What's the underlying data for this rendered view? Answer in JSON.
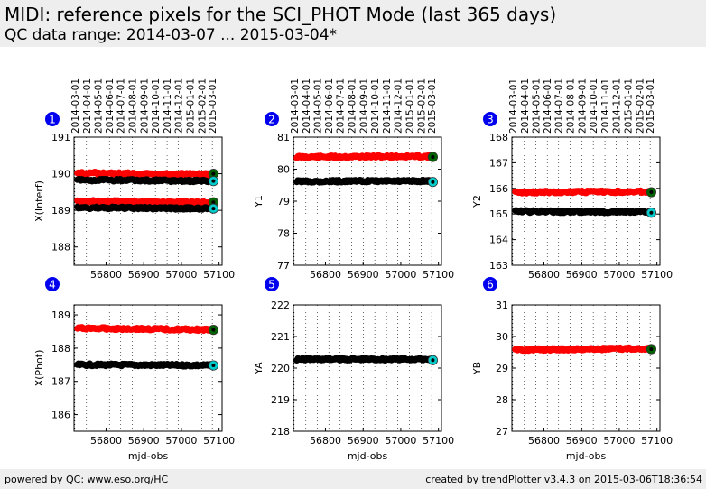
{
  "header": {
    "title": "MIDI: reference pixels for the SCI_PHOT Mode (last 365 days)",
    "subtitle": "QC data range: 2014-03-07 ... 2015-03-04*"
  },
  "footer": {
    "left": "powered by QC: www.eso.org/HC",
    "right": "created by trendPlotter v3.4.3 on 2015-03-06T18:36:54"
  },
  "colors": {
    "series_red": "#ff0000",
    "series_black": "#000000",
    "last_point_green": "#006400",
    "last_point_cyan": "#00cccc",
    "badge": "#0000ee"
  },
  "chart_data": [
    {
      "type": "scatter",
      "panel": "1",
      "ylabel": "X(Interf)",
      "xlabel": "",
      "xlim": [
        56715,
        57108
      ],
      "ylim": [
        187.5,
        191
      ],
      "yticks": [
        188,
        189,
        190,
        191
      ],
      "xticks": [
        56800,
        56900,
        57000,
        57100
      ],
      "top_dates": [
        "2014-03-01",
        "2014-04-01",
        "2014-05-01",
        "2014-06-01",
        "2014-07-01",
        "2014-08-01",
        "2014-09-01",
        "2014-10-01",
        "2014-11-01",
        "2014-12-01",
        "2015-01-01",
        "2015-02-01",
        "2015-03-01"
      ],
      "top_mjd": [
        56717,
        56748,
        56778,
        56809,
        56839,
        56870,
        56901,
        56931,
        56962,
        56992,
        57023,
        57054,
        57082
      ],
      "series": [
        {
          "color": "red",
          "x": [
            56724,
            57080
          ],
          "y": [
            190.02,
            189.98
          ],
          "last": {
            "x": 57085,
            "y": 190.0,
            "color": "green"
          }
        },
        {
          "color": "black",
          "x": [
            56724,
            57080
          ],
          "y": [
            189.83,
            189.8
          ],
          "last": {
            "x": 57085,
            "y": 189.8,
            "color": "cyan"
          }
        },
        {
          "color": "red",
          "x": [
            56724,
            57080
          ],
          "y": [
            189.25,
            189.22
          ],
          "last": {
            "x": 57085,
            "y": 189.22,
            "color": "green"
          }
        },
        {
          "color": "black",
          "x": [
            56724,
            57080
          ],
          "y": [
            189.07,
            189.05
          ],
          "last": {
            "x": 57085,
            "y": 189.05,
            "color": "cyan"
          }
        }
      ]
    },
    {
      "type": "scatter",
      "panel": "2",
      "ylabel": "Y1",
      "xlabel": "",
      "xlim": [
        56715,
        57108
      ],
      "ylim": [
        77,
        81
      ],
      "yticks": [
        77,
        78,
        79,
        80,
        81
      ],
      "xticks": [
        56800,
        56900,
        57000,
        57100
      ],
      "top_dates": [
        "2014-03-01",
        "2014-04-01",
        "2014-05-01",
        "2014-06-01",
        "2014-07-01",
        "2014-08-01",
        "2014-09-01",
        "2014-10-01",
        "2014-11-01",
        "2014-12-01",
        "2015-01-01",
        "2015-02-01",
        "2015-03-01"
      ],
      "top_mjd": [
        56717,
        56748,
        56778,
        56809,
        56839,
        56870,
        56901,
        56931,
        56962,
        56992,
        57023,
        57054,
        57082
      ],
      "series": [
        {
          "color": "red",
          "x": [
            56724,
            57080
          ],
          "y": [
            80.38,
            80.4
          ],
          "last": {
            "x": 57085,
            "y": 80.38,
            "color": "green"
          }
        },
        {
          "color": "black",
          "x": [
            56724,
            57080
          ],
          "y": [
            79.62,
            79.63
          ],
          "last": {
            "x": 57085,
            "y": 79.6,
            "color": "cyan"
          }
        }
      ]
    },
    {
      "type": "scatter",
      "panel": "3",
      "ylabel": "Y2",
      "xlabel": "",
      "xlim": [
        56715,
        57108
      ],
      "ylim": [
        163,
        168
      ],
      "yticks": [
        163,
        164,
        165,
        166,
        167,
        168
      ],
      "xticks": [
        56800,
        56900,
        57000,
        57100
      ],
      "top_dates": [
        "2014-03-01",
        "2014-04-01",
        "2014-05-01",
        "2014-06-01",
        "2014-07-01",
        "2014-08-01",
        "2014-09-01",
        "2014-10-01",
        "2014-11-01",
        "2014-12-01",
        "2015-01-01",
        "2015-02-01",
        "2015-03-01"
      ],
      "top_mjd": [
        56717,
        56748,
        56778,
        56809,
        56839,
        56870,
        56901,
        56931,
        56962,
        56992,
        57023,
        57054,
        57082
      ],
      "series": [
        {
          "color": "red",
          "x": [
            56724,
            57080
          ],
          "y": [
            165.85,
            165.87
          ],
          "last": {
            "x": 57085,
            "y": 165.85,
            "color": "green"
          }
        },
        {
          "color": "black",
          "x": [
            56724,
            57080
          ],
          "y": [
            165.1,
            165.08
          ],
          "last": {
            "x": 57085,
            "y": 165.05,
            "color": "cyan"
          }
        }
      ]
    },
    {
      "type": "scatter",
      "panel": "4",
      "ylabel": "X(Phot)",
      "xlabel": "mjd-obs",
      "xlim": [
        56715,
        57108
      ],
      "ylim": [
        185.5,
        189.3
      ],
      "yticks": [
        186,
        187,
        188,
        189
      ],
      "xticks": [
        56800,
        56900,
        57000,
        57100
      ],
      "series": [
        {
          "color": "red",
          "x": [
            56724,
            57080
          ],
          "y": [
            188.6,
            188.55
          ],
          "last": {
            "x": 57085,
            "y": 188.55,
            "color": "green"
          }
        },
        {
          "color": "black",
          "x": [
            56724,
            57080
          ],
          "y": [
            187.5,
            187.48
          ],
          "last": {
            "x": 57085,
            "y": 187.48,
            "color": "cyan"
          }
        }
      ]
    },
    {
      "type": "scatter",
      "panel": "5",
      "ylabel": "YA",
      "xlabel": "mjd-obs",
      "xlim": [
        56715,
        57108
      ],
      "ylim": [
        218,
        222
      ],
      "yticks": [
        218,
        219,
        220,
        221,
        222
      ],
      "xticks": [
        56800,
        56900,
        57000,
        57100
      ],
      "series": [
        {
          "color": "black",
          "x": [
            56724,
            57080
          ],
          "y": [
            220.28,
            220.28
          ],
          "last": {
            "x": 57085,
            "y": 220.25,
            "color": "cyan"
          }
        }
      ]
    },
    {
      "type": "scatter",
      "panel": "6",
      "ylabel": "YB",
      "xlabel": "mjd-obs",
      "xlim": [
        56715,
        57108
      ],
      "ylim": [
        27,
        31
      ],
      "yticks": [
        27,
        28,
        29,
        30,
        31
      ],
      "xticks": [
        56800,
        56900,
        57000,
        57100
      ],
      "series": [
        {
          "color": "red",
          "x": [
            56724,
            57080
          ],
          "y": [
            29.58,
            29.62
          ],
          "last": {
            "x": 57085,
            "y": 29.6,
            "color": "green"
          }
        }
      ]
    }
  ]
}
